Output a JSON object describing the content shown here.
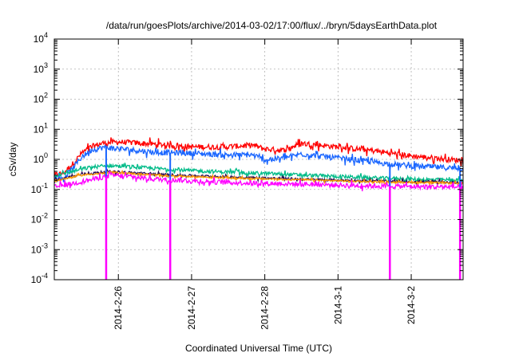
{
  "chart_data": {
    "type": "line",
    "title": "/data/run/goesPlots/archive/2014-03-02/17:00/flux/../bryn/5daysEarthData.plot",
    "xlabel": "Coordinated Universal Time (UTC)",
    "ylabel": "cSv/day",
    "yscale": "log",
    "ylim": [
      0.0001,
      10000
    ],
    "xlim": [
      "2014-02-25 03:00",
      "2014-03-02 17:00"
    ],
    "grid": true,
    "y_ticks": [
      {
        "value": 0.0001,
        "base": "10",
        "exp": "-4"
      },
      {
        "value": 0.001,
        "base": "10",
        "exp": "-3"
      },
      {
        "value": 0.01,
        "base": "10",
        "exp": "-2"
      },
      {
        "value": 0.1,
        "base": "10",
        "exp": "-1"
      },
      {
        "value": 1,
        "base": "10",
        "exp": "0"
      },
      {
        "value": 10,
        "base": "10",
        "exp": "1"
      },
      {
        "value": 100,
        "base": "10",
        "exp": "2"
      },
      {
        "value": 1000,
        "base": "10",
        "exp": "3"
      },
      {
        "value": 10000,
        "base": "10",
        "exp": "4"
      }
    ],
    "x_ticks": [
      {
        "value": "2014-02-26 00:00",
        "label": "2014-2-26"
      },
      {
        "value": "2014-02-27 00:00",
        "label": "2014-2-27"
      },
      {
        "value": "2014-02-28 00:00",
        "label": "2014-2-28"
      },
      {
        "value": "2014-03-01 00:00",
        "label": "2014-3-1"
      },
      {
        "value": "2014-03-02 00:00",
        "label": "2014-3-2"
      }
    ],
    "dropouts": [
      "2014-02-25 20:00",
      "2014-02-26 17:00",
      "2014-03-01 17:00",
      "2014-03-02 16:00"
    ],
    "series": [
      {
        "color": "#ff0000",
        "noise": 0.09,
        "points": [
          [
            "2014-02-25 03:00",
            0.3
          ],
          [
            "2014-02-25 06:00",
            0.35
          ],
          [
            "2014-02-25 09:00",
            0.7
          ],
          [
            "2014-02-25 12:00",
            1.6
          ],
          [
            "2014-02-25 15:00",
            2.6
          ],
          [
            "2014-02-25 19:00",
            3.5
          ],
          [
            "2014-02-26 00:00",
            3.8
          ],
          [
            "2014-02-26 12:00",
            3.2
          ],
          [
            "2014-02-27 00:00",
            2.6
          ],
          [
            "2014-02-27 12:00",
            2.6
          ],
          [
            "2014-02-27 20:00",
            3.0
          ],
          [
            "2014-02-28 00:00",
            2.2
          ],
          [
            "2014-02-28 06:00",
            2.0
          ],
          [
            "2014-02-28 12:00",
            3.4
          ],
          [
            "2014-02-29 00:00",
            2.6
          ],
          [
            "2014-03-01 00:00",
            2.6
          ],
          [
            "2014-03-01 12:00",
            1.9
          ],
          [
            "2014-03-02 00:00",
            1.3
          ],
          [
            "2014-03-02 17:00",
            0.9
          ]
        ]
      },
      {
        "color": "#1a66ff",
        "noise": 0.09,
        "points": [
          [
            "2014-02-25 03:00",
            0.22
          ],
          [
            "2014-02-25 06:00",
            0.24
          ],
          [
            "2014-02-25 09:00",
            0.5
          ],
          [
            "2014-02-25 12:00",
            1.2
          ],
          [
            "2014-02-25 15:00",
            2.0
          ],
          [
            "2014-02-25 19:00",
            2.5
          ],
          [
            "2014-02-26 00:00",
            2.3
          ],
          [
            "2014-02-26 12:00",
            1.7
          ],
          [
            "2014-02-27 00:00",
            1.6
          ],
          [
            "2014-02-27 12:00",
            1.4
          ],
          [
            "2014-02-27 20:00",
            1.4
          ],
          [
            "2014-02-28 00:00",
            0.95
          ],
          [
            "2014-02-28 06:00",
            1.1
          ],
          [
            "2014-02-28 12:00",
            1.5
          ],
          [
            "2014-03-01 00:00",
            1.1
          ],
          [
            "2014-03-01 12:00",
            0.8
          ],
          [
            "2014-03-02 00:00",
            0.6
          ],
          [
            "2014-03-02 17:00",
            0.5
          ]
        ]
      },
      {
        "color": "#00bb88",
        "noise": 0.06,
        "points": [
          [
            "2014-02-25 03:00",
            0.28
          ],
          [
            "2014-02-25 09:00",
            0.4
          ],
          [
            "2014-02-25 15:00",
            0.55
          ],
          [
            "2014-02-25 22:00",
            0.62
          ],
          [
            "2014-02-26 12:00",
            0.5
          ],
          [
            "2014-02-27 00:00",
            0.42
          ],
          [
            "2014-02-28 00:00",
            0.34
          ],
          [
            "2014-03-01 00:00",
            0.27
          ],
          [
            "2014-03-02 00:00",
            0.22
          ],
          [
            "2014-03-02 17:00",
            0.2
          ]
        ]
      },
      {
        "color": "#2a0a55",
        "noise": 0.04,
        "points": [
          [
            "2014-02-25 03:00",
            0.2
          ],
          [
            "2014-02-25 12:00",
            0.32
          ],
          [
            "2014-02-25 22:00",
            0.4
          ],
          [
            "2014-02-26 12:00",
            0.32
          ],
          [
            "2014-02-27 12:00",
            0.26
          ],
          [
            "2014-02-28 12:00",
            0.22
          ],
          [
            "2014-03-01 12:00",
            0.19
          ],
          [
            "2014-03-02 17:00",
            0.17
          ]
        ]
      },
      {
        "color": "#ff9900",
        "noise": 0.03,
        "points": [
          [
            "2014-02-25 03:00",
            0.19
          ],
          [
            "2014-02-25 12:00",
            0.3
          ],
          [
            "2014-02-25 22:00",
            0.37
          ],
          [
            "2014-02-26 12:00",
            0.3
          ],
          [
            "2014-02-27 12:00",
            0.24
          ],
          [
            "2014-02-28 12:00",
            0.21
          ],
          [
            "2014-03-01 12:00",
            0.18
          ],
          [
            "2014-03-02 17:00",
            0.16
          ]
        ]
      },
      {
        "color": "#ff00ff",
        "noise": 0.08,
        "points": [
          [
            "2014-02-25 03:00",
            0.12
          ],
          [
            "2014-02-25 12:00",
            0.18
          ],
          [
            "2014-02-25 22:00",
            0.3
          ],
          [
            "2014-02-26 12:00",
            0.22
          ],
          [
            "2014-02-27 12:00",
            0.17
          ],
          [
            "2014-02-28 12:00",
            0.15
          ],
          [
            "2014-03-01 12:00",
            0.13
          ],
          [
            "2014-03-02 17:00",
            0.12
          ]
        ]
      }
    ]
  }
}
